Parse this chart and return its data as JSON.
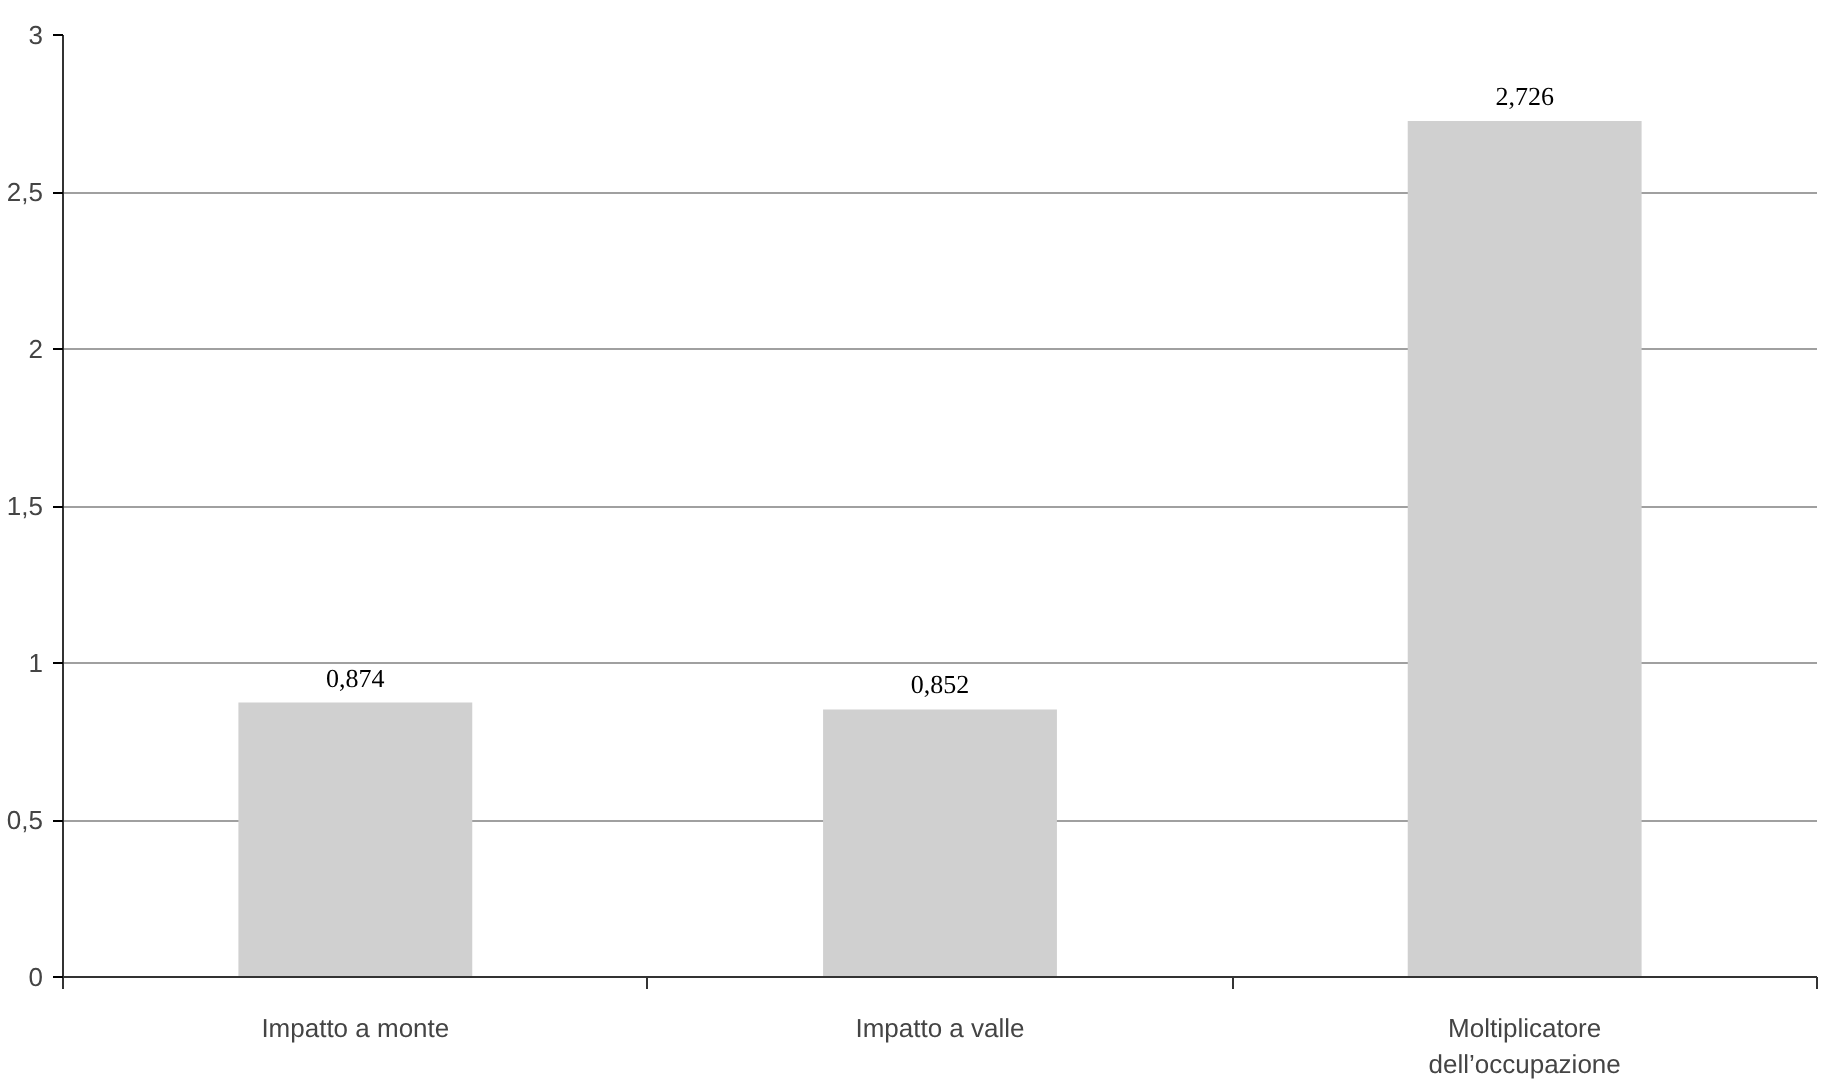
{
  "chart_data": {
    "type": "bar",
    "categories": [
      "Impatto a monte",
      "Impatto a valle",
      "Moltiplicatore dell’occupazione"
    ],
    "values": [
      0.874,
      0.852,
      2.726
    ],
    "value_labels": [
      "0,874",
      "0,852",
      "2,726"
    ],
    "color": "#d0d0d0",
    "ylim": [
      0,
      3
    ],
    "yticks": [
      0,
      {
        "value": 0.5,
        "label": "0,5"
      },
      1,
      {
        "value": 1.5,
        "label": "1,5"
      },
      2,
      {
        "value": 2.5,
        "label": "2,5"
      },
      3
    ],
    "grid": "y"
  }
}
